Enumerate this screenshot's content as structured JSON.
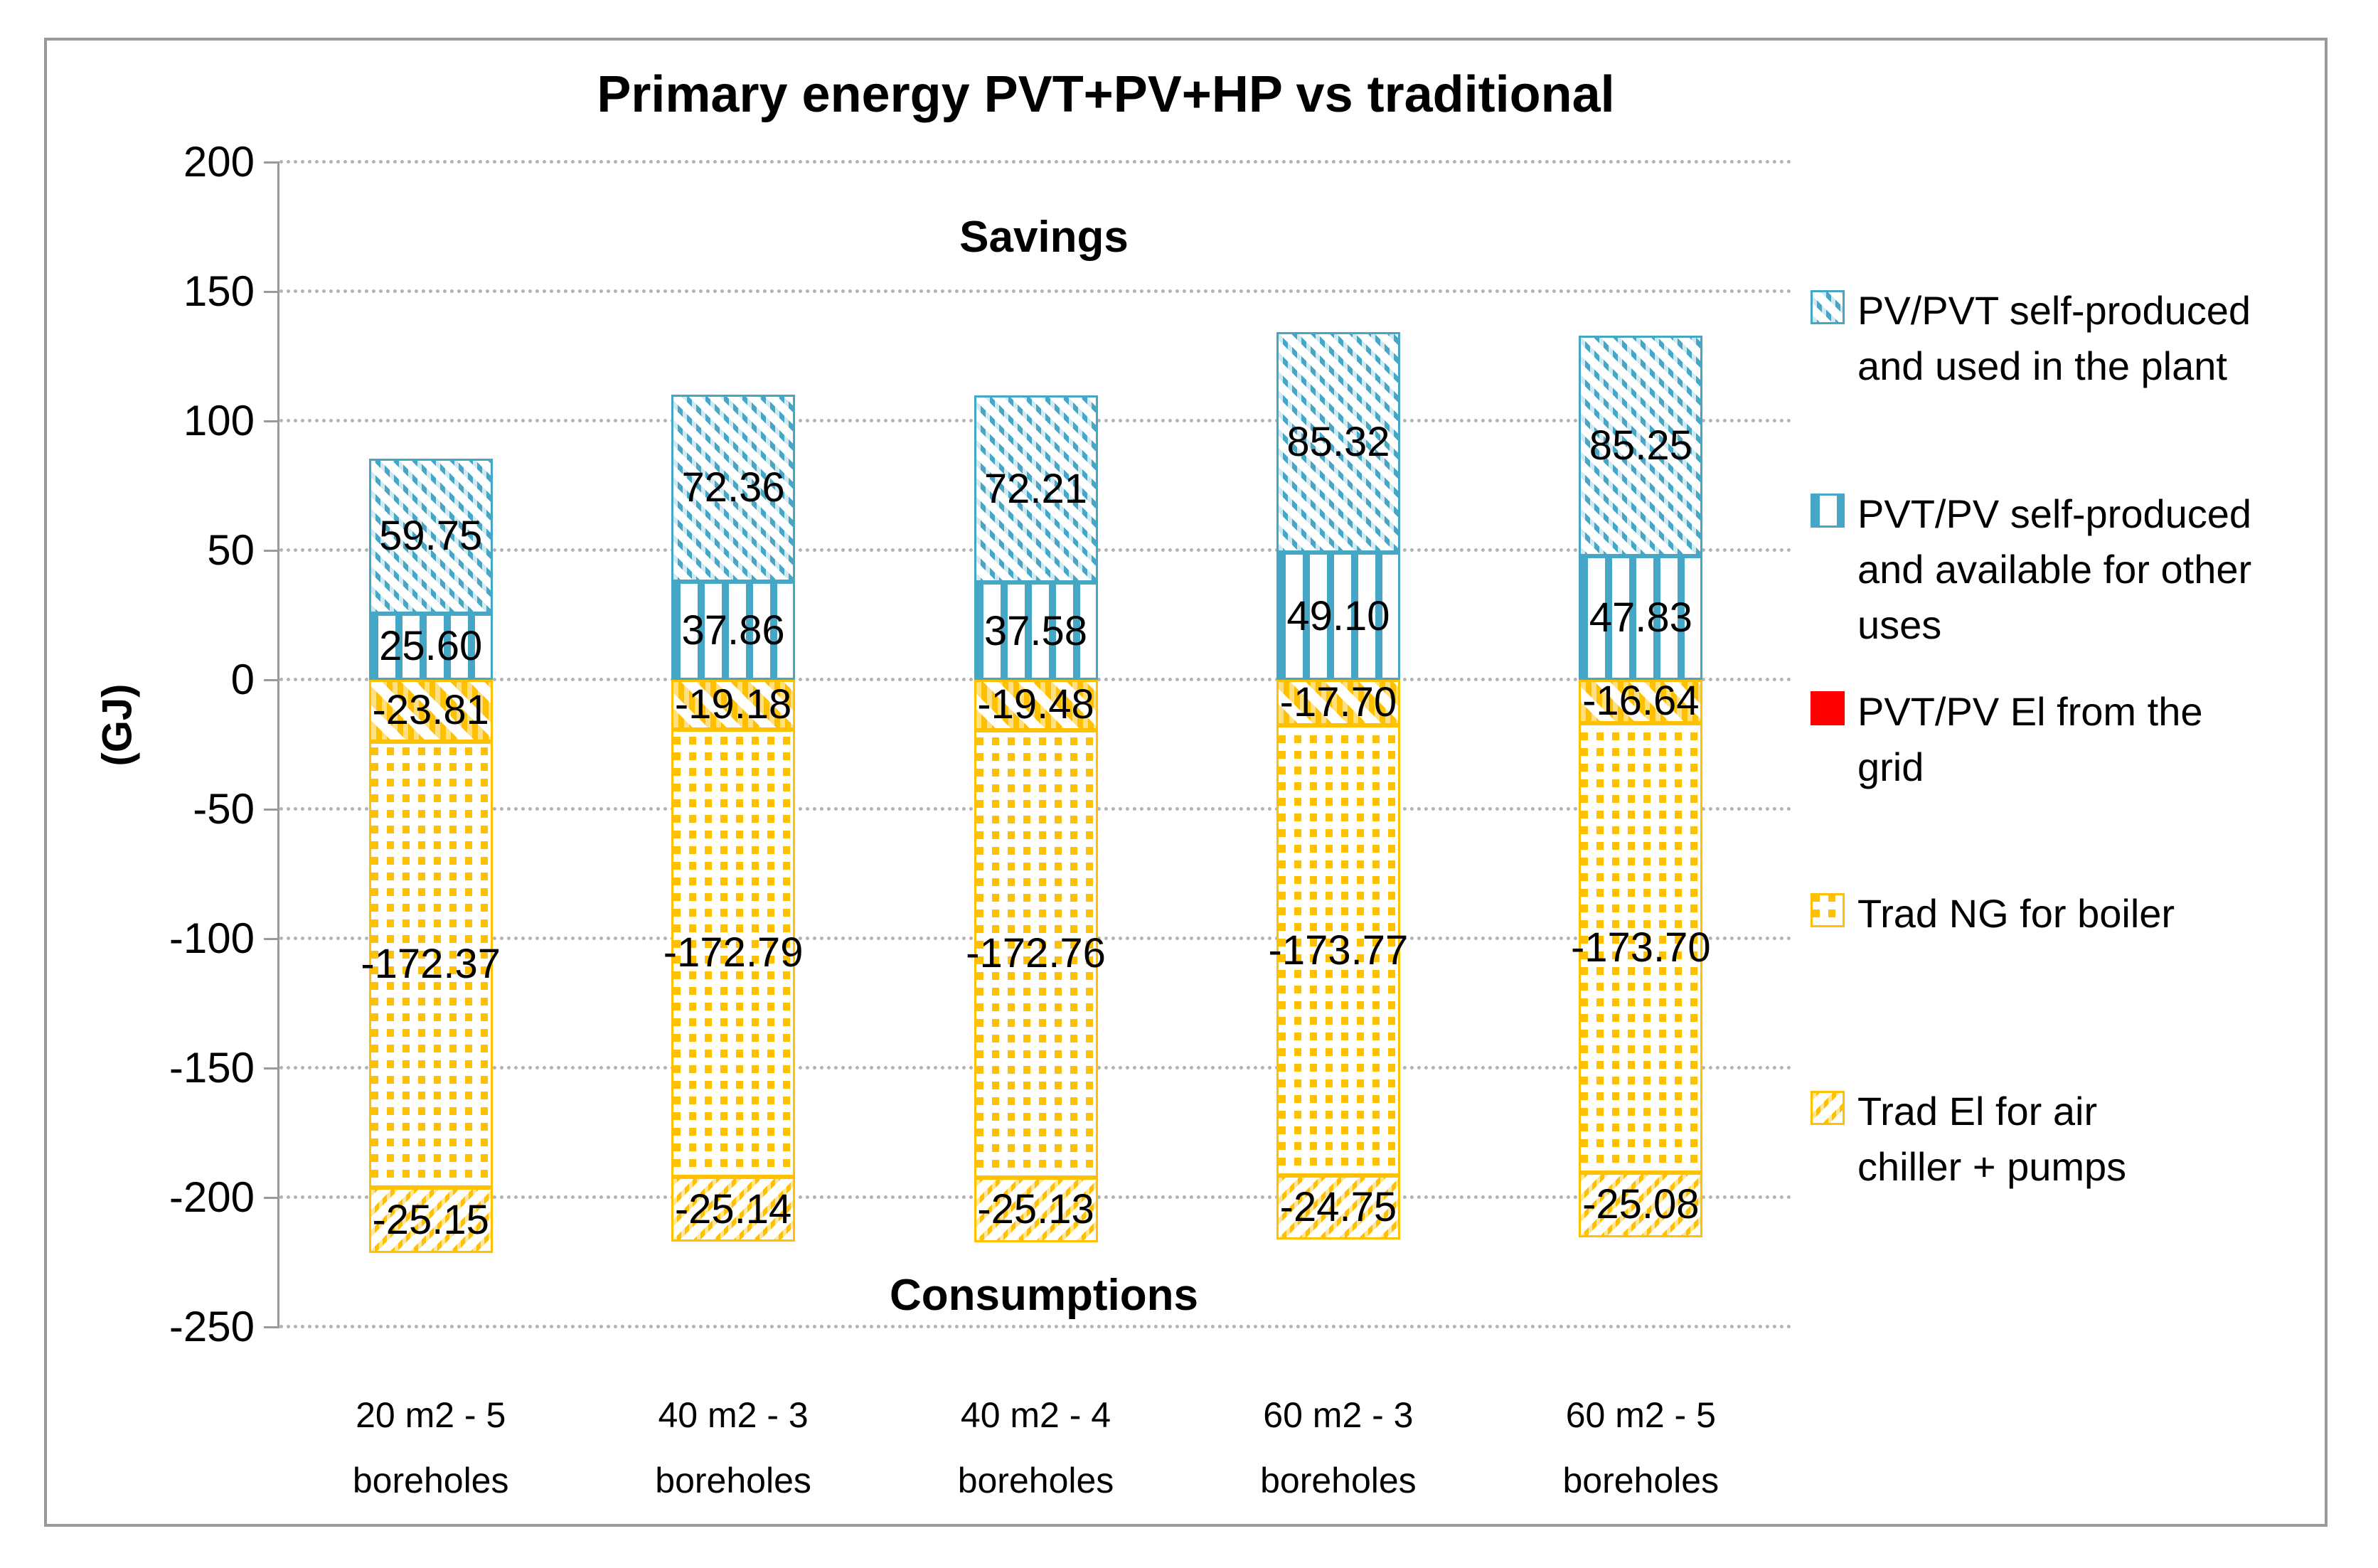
{
  "title": "Primary energy PVT+PV+HP vs traditional",
  "annotations": {
    "savings": "Savings",
    "consumptions": "Consumptions"
  },
  "y_axis": {
    "label": "(GJ)",
    "ticks": [
      200,
      150,
      100,
      50,
      0,
      -50,
      -100,
      -150,
      -200,
      -250
    ]
  },
  "x_axis": {
    "category_lines": [
      [
        "20 m2 - 5",
        "boreholes"
      ],
      [
        "40 m2 - 3",
        "boreholes"
      ],
      [
        "40 m2 - 4",
        "boreholes"
      ],
      [
        "60 m2 - 3",
        "boreholes"
      ],
      [
        "60 m2 - 5",
        "boreholes"
      ]
    ]
  },
  "legend": {
    "items": [
      {
        "id": "pv-pvt-used",
        "label": "PV/PVT self-produced and used in the plant",
        "lines": [
          "PV/PVT self-produced",
          "and used in the plant"
        ],
        "swatch": "blue-diagonal"
      },
      {
        "id": "pvt-pv-available",
        "label": "PVT/PV self-produced and available for other uses",
        "lines": [
          "PVT/PV self-produced",
          "and available for other",
          "uses"
        ],
        "swatch": "blue-vertical"
      },
      {
        "id": "pvt-pv-grid",
        "label": "PVT/PV El from the grid",
        "lines": [
          "PVT/PV El from the",
          "grid"
        ],
        "swatch": "red-solid"
      },
      {
        "id": "trad-ng",
        "label": "Trad NG for boiler",
        "lines": [
          "Trad NG for boiler"
        ],
        "swatch": "orange-dots"
      },
      {
        "id": "trad-el",
        "label": "Trad El for air chiller + pumps",
        "lines": [
          "Trad El for air",
          "chiller + pumps"
        ],
        "swatch": "orange-diagonal"
      }
    ]
  },
  "colors": {
    "blue": "#45A6C6",
    "orange": "#FFC000",
    "red": "#FF0000",
    "gridline": "#B3B3B3",
    "axis": "#9A9A9A",
    "border": "#999999",
    "text": "#000000"
  },
  "chart_data": {
    "type": "bar",
    "stacked": true,
    "title": "Primary energy PVT+PV+HP vs traditional",
    "categories": [
      "20 m2 - 5 boreholes",
      "40 m2 - 3 boreholes",
      "40 m2 - 4 boreholes",
      "60 m2 - 3 boreholes",
      "60 m2 - 5 boreholes"
    ],
    "series": [
      {
        "id": "pv-pvt-used",
        "name": "PV/PVT self-produced and used in the plant",
        "pattern": "blue-diagonal",
        "values": [
          59.75,
          72.36,
          72.21,
          85.32,
          85.25
        ]
      },
      {
        "id": "pvt-pv-available",
        "name": "PVT/PV self-produced and available for other uses",
        "pattern": "blue-vertical",
        "values": [
          25.6,
          37.86,
          37.58,
          49.1,
          47.83
        ]
      },
      {
        "id": "pvt-pv-grid",
        "name": "PVT/PV El from the grid",
        "pattern": "orange-wide-diagonal",
        "values": [
          -23.81,
          -19.18,
          -19.48,
          -17.7,
          -16.64
        ]
      },
      {
        "id": "trad-ng",
        "name": "Trad NG for boiler",
        "pattern": "orange-dots",
        "values": [
          -172.37,
          -172.79,
          -172.76,
          -173.77,
          -173.7
        ]
      },
      {
        "id": "trad-el",
        "name": "Trad El for air chiller + pumps",
        "pattern": "orange-thin-diagonal",
        "values": [
          -25.15,
          -25.14,
          -25.13,
          -24.75,
          -25.08
        ]
      }
    ],
    "ylabel": "(GJ)",
    "ylim": [
      -250,
      200
    ],
    "ytick_step": 50,
    "grid": "dotted-horizontal",
    "legend_position": "right",
    "annotations": [
      "Savings",
      "Consumptions"
    ],
    "value_labels": "center-of-segment, two decimals"
  }
}
